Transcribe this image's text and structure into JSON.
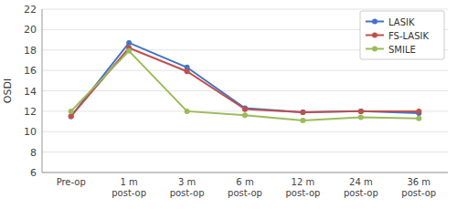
{
  "chart_data": {
    "type": "line",
    "categories": [
      "Pre-op",
      "1 m\npost-op",
      "3 m\npost-op",
      "6 m\npost-op",
      "12 m\npost-op",
      "24 m\npost-op",
      "36 m\npost-op"
    ],
    "series": [
      {
        "name": "LASIK",
        "color": "#4472C4",
        "marker": "circle",
        "values": [
          11.5,
          18.7,
          16.3,
          12.3,
          11.9,
          12.0,
          11.8
        ]
      },
      {
        "name": "FS-LASIK",
        "color": "#C0504D",
        "marker": "circle",
        "values": [
          11.5,
          18.2,
          15.9,
          12.2,
          11.9,
          12.0,
          12.0
        ]
      },
      {
        "name": "SMILE",
        "color": "#9BBB59",
        "marker": "circle",
        "values": [
          12.0,
          17.9,
          12.0,
          11.6,
          11.1,
          11.4,
          11.3
        ]
      }
    ],
    "ylabel": "OSDI",
    "ylim": [
      6,
      22
    ],
    "yticks": [
      6,
      8,
      10,
      12,
      14,
      16,
      18,
      20,
      22
    ],
    "grid": true,
    "legend": "upper right"
  }
}
